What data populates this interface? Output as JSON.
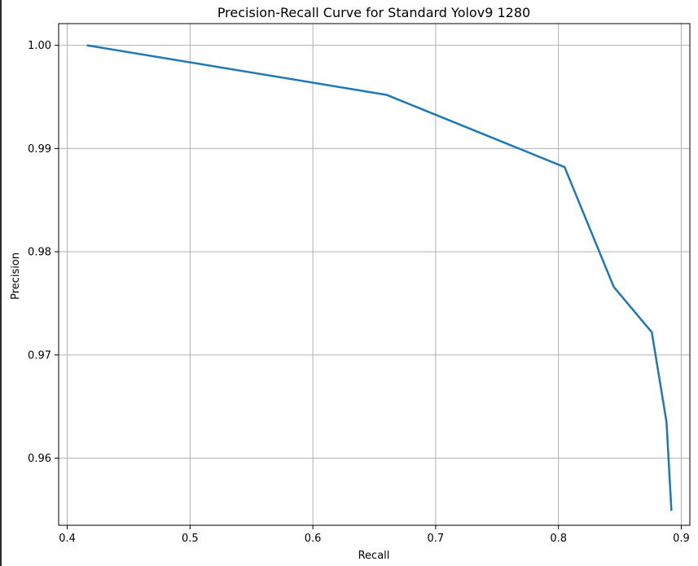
{
  "chart_data": {
    "type": "line",
    "title": "Precision-Recall Curve for Standard Yolov9 1280",
    "xlabel": "Recall",
    "ylabel": "Precision",
    "xlim": [
      0.393,
      0.907
    ],
    "ylim": [
      0.9535,
      1.0021
    ],
    "xticks": [
      0.4,
      0.5,
      0.6,
      0.7,
      0.8,
      0.9
    ],
    "xtick_labels": [
      "0.4",
      "0.5",
      "0.6",
      "0.7",
      "0.8",
      "0.9"
    ],
    "yticks": [
      0.96,
      0.97,
      0.98,
      0.99,
      1.0
    ],
    "ytick_labels": [
      "0.96",
      "0.97",
      "0.98",
      "0.99",
      "1.00"
    ],
    "grid": true,
    "line_color": "#1f77b4",
    "grid_color": "#b0b0b0",
    "series": [
      {
        "x": [
          0.416,
          0.66,
          0.805,
          0.845,
          0.876,
          0.888,
          0.892
        ],
        "y": [
          1.0,
          0.9952,
          0.9882,
          0.9766,
          0.9722,
          0.9635,
          0.9549
        ]
      }
    ]
  }
}
